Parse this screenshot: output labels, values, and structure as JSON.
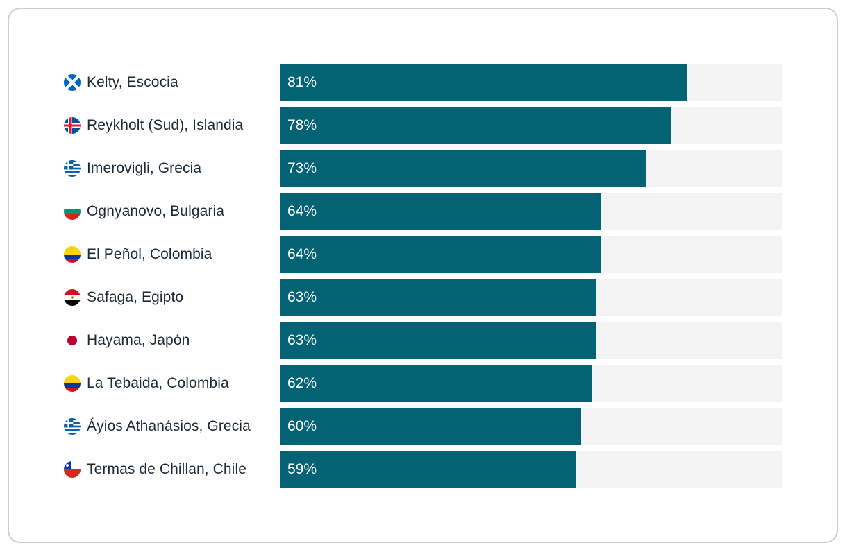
{
  "chart_data": {
    "type": "bar",
    "orientation": "horizontal",
    "categories": [
      "Kelty, Escocia",
      "Reykholt (Sud), Islandia",
      "Imerovigli, Grecia",
      "Ognyanovo, Bulgaria",
      "El Peñol, Colombia",
      "Safaga, Egipto",
      "Hayama, Japón",
      "La Tebaida, Colombia",
      "Áyios Athanásios, Grecia",
      "Termas de Chillan, Chile"
    ],
    "values": [
      81,
      78,
      73,
      64,
      64,
      63,
      63,
      62,
      60,
      59
    ],
    "value_labels": [
      "81%",
      "78%",
      "73%",
      "64%",
      "64%",
      "63%",
      "63%",
      "62%",
      "60%",
      "59%"
    ],
    "flags": [
      "scotland-flag-icon",
      "iceland-flag-icon",
      "greece-flag-icon",
      "bulgaria-flag-icon",
      "colombia-flag-icon",
      "egypt-flag-icon",
      "japan-flag-icon",
      "colombia-flag-icon",
      "greece-flag-icon",
      "chile-flag-icon"
    ],
    "xlim": [
      0,
      100
    ],
    "bar_color": "#046275",
    "track_color": "#f3f3f3",
    "grid": false,
    "legend": "none"
  }
}
